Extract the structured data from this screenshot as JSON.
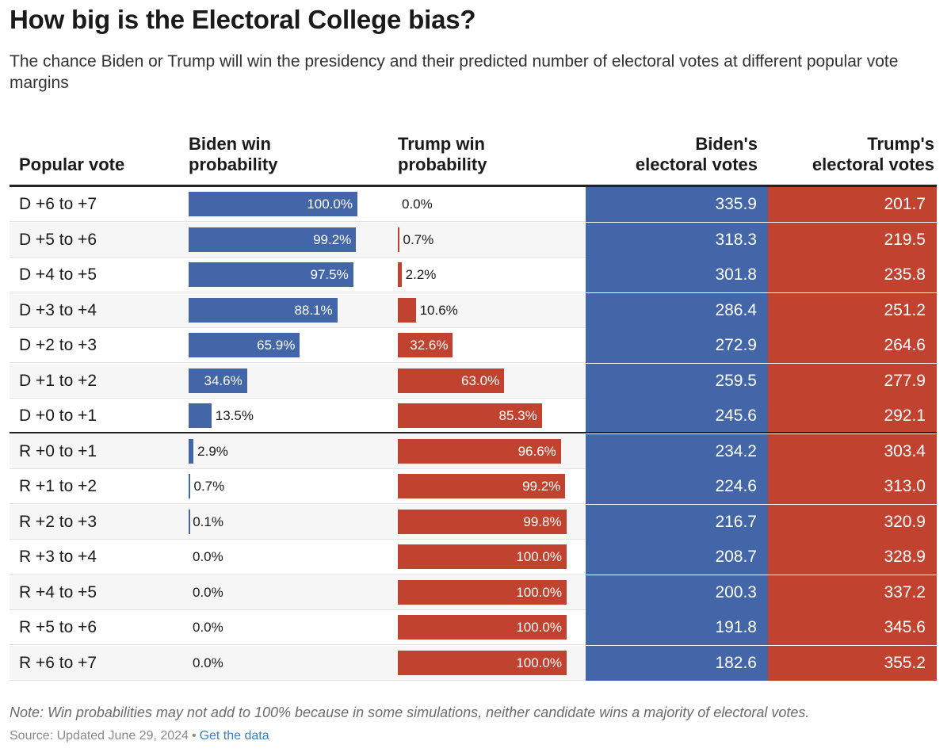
{
  "title": "How big is the Electoral College bias?",
  "subtitle": "The chance Biden or Trump will win the presidency and their predicted number of electoral votes at different popular vote margins",
  "headers": {
    "popular_vote": "Popular vote",
    "biden_win_1": "Biden win",
    "biden_win_2": "probability",
    "trump_win_1": "Trump win",
    "trump_win_2": "probability",
    "biden_ev_1": "Biden's",
    "biden_ev_2": "electoral votes",
    "trump_ev_1": "Trump's",
    "trump_ev_2": "electoral votes"
  },
  "colors": {
    "biden": "#4266a8",
    "trump": "#c1432f"
  },
  "note": "Note: Win probabilities may not add to 100% because in some simulations, neither candidate wins a majority of electoral votes.",
  "source": {
    "text": "Source: Updated June 29, 2024",
    "separator": "•",
    "link": "Get the data"
  },
  "chart_data": {
    "type": "table",
    "columns": [
      "Popular vote",
      "Biden win probability",
      "Trump win probability",
      "Biden's electoral votes",
      "Trump's electoral votes"
    ],
    "rows": [
      {
        "margin": "D +6 to +7",
        "biden_prob": 100.0,
        "biden_label": "100.0%",
        "trump_prob": 0.0,
        "trump_label": "0.0%",
        "biden_ev": "335.9",
        "trump_ev": "201.7"
      },
      {
        "margin": "D +5 to +6",
        "biden_prob": 99.2,
        "biden_label": "99.2%",
        "trump_prob": 0.7,
        "trump_label": "0.7%",
        "biden_ev": "318.3",
        "trump_ev": "219.5"
      },
      {
        "margin": "D +4 to +5",
        "biden_prob": 97.5,
        "biden_label": "97.5%",
        "trump_prob": 2.2,
        "trump_label": "2.2%",
        "biden_ev": "301.8",
        "trump_ev": "235.8"
      },
      {
        "margin": "D +3 to +4",
        "biden_prob": 88.1,
        "biden_label": "88.1%",
        "trump_prob": 10.6,
        "trump_label": "10.6%",
        "biden_ev": "286.4",
        "trump_ev": "251.2"
      },
      {
        "margin": "D +2 to +3",
        "biden_prob": 65.9,
        "biden_label": "65.9%",
        "trump_prob": 32.6,
        "trump_label": "32.6%",
        "biden_ev": "272.9",
        "trump_ev": "264.6"
      },
      {
        "margin": "D +1 to +2",
        "biden_prob": 34.6,
        "biden_label": "34.6%",
        "trump_prob": 63.0,
        "trump_label": "63.0%",
        "biden_ev": "259.5",
        "trump_ev": "277.9"
      },
      {
        "margin": "D +0 to +1",
        "biden_prob": 13.5,
        "biden_label": "13.5%",
        "trump_prob": 85.3,
        "trump_label": "85.3%",
        "biden_ev": "245.6",
        "trump_ev": "292.1"
      },
      {
        "margin": "R +0 to +1",
        "biden_prob": 2.9,
        "biden_label": "2.9%",
        "trump_prob": 96.6,
        "trump_label": "96.6%",
        "biden_ev": "234.2",
        "trump_ev": "303.4"
      },
      {
        "margin": "R +1 to +2",
        "biden_prob": 0.7,
        "biden_label": "0.7%",
        "trump_prob": 99.2,
        "trump_label": "99.2%",
        "biden_ev": "224.6",
        "trump_ev": "313.0"
      },
      {
        "margin": "R +2 to +3",
        "biden_prob": 0.1,
        "biden_label": "0.1%",
        "trump_prob": 99.8,
        "trump_label": "99.8%",
        "biden_ev": "216.7",
        "trump_ev": "320.9"
      },
      {
        "margin": "R +3 to +4",
        "biden_prob": 0.0,
        "biden_label": "0.0%",
        "trump_prob": 100.0,
        "trump_label": "100.0%",
        "biden_ev": "208.7",
        "trump_ev": "328.9"
      },
      {
        "margin": "R +4 to +5",
        "biden_prob": 0.0,
        "biden_label": "0.0%",
        "trump_prob": 100.0,
        "trump_label": "100.0%",
        "biden_ev": "200.3",
        "trump_ev": "337.2"
      },
      {
        "margin": "R +5 to +6",
        "biden_prob": 0.0,
        "biden_label": "0.0%",
        "trump_prob": 100.0,
        "trump_label": "100.0%",
        "biden_ev": "191.8",
        "trump_ev": "345.6"
      },
      {
        "margin": "R +6 to +7",
        "biden_prob": 0.0,
        "biden_label": "0.0%",
        "trump_prob": 100.0,
        "trump_label": "100.0%",
        "biden_ev": "182.6",
        "trump_ev": "355.2"
      }
    ]
  }
}
